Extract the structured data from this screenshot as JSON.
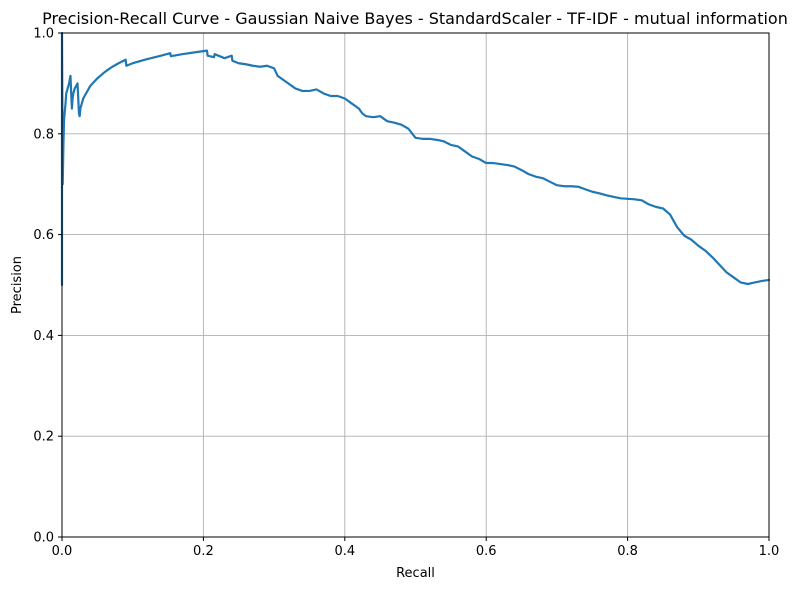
{
  "chart_data": {
    "type": "line",
    "title": "Precision-Recall Curve - Gaussian Naive Bayes - StandardScaler - TF-IDF - mutual information",
    "xlabel": "Recall",
    "ylabel": "Precision",
    "xlim": [
      0.0,
      1.0
    ],
    "ylim": [
      0.0,
      1.0
    ],
    "x_ticks": [
      "0.0",
      "0.2",
      "0.4",
      "0.6",
      "0.8",
      "1.0"
    ],
    "y_ticks": [
      "0.0",
      "0.2",
      "0.4",
      "0.6",
      "0.8",
      "1.0"
    ],
    "grid": true,
    "line_color": "#1f77b4",
    "grid_color": "#b0b0b0",
    "series": [
      {
        "x": [
          0.0,
          0.0,
          0.001,
          0.002,
          0.003,
          0.005,
          0.006,
          0.008,
          0.01,
          0.012,
          0.013,
          0.014,
          0.015,
          0.016,
          0.018,
          0.02,
          0.022,
          0.024,
          0.025,
          0.026,
          0.03,
          0.04,
          0.05,
          0.06,
          0.07,
          0.08,
          0.09,
          0.091,
          0.1,
          0.12,
          0.14,
          0.153,
          0.154,
          0.17,
          0.19,
          0.205,
          0.206,
          0.215,
          0.216,
          0.23,
          0.24,
          0.241,
          0.25,
          0.26,
          0.27,
          0.28,
          0.29,
          0.3,
          0.305,
          0.31,
          0.32,
          0.33,
          0.34,
          0.35,
          0.36,
          0.37,
          0.38,
          0.39,
          0.4,
          0.41,
          0.42,
          0.425,
          0.43,
          0.44,
          0.45,
          0.46,
          0.47,
          0.48,
          0.49,
          0.5,
          0.51,
          0.52,
          0.53,
          0.54,
          0.55,
          0.56,
          0.57,
          0.58,
          0.59,
          0.6,
          0.61,
          0.62,
          0.63,
          0.64,
          0.65,
          0.66,
          0.67,
          0.68,
          0.69,
          0.7,
          0.71,
          0.72,
          0.73,
          0.74,
          0.75,
          0.76,
          0.77,
          0.78,
          0.79,
          0.8,
          0.81,
          0.82,
          0.83,
          0.84,
          0.85,
          0.86,
          0.87,
          0.88,
          0.89,
          0.9,
          0.91,
          0.92,
          0.93,
          0.94,
          0.95,
          0.96,
          0.97,
          0.98,
          0.99,
          1.0
        ],
        "y": [
          0.5,
          1.0,
          0.7,
          0.78,
          0.83,
          0.86,
          0.88,
          0.89,
          0.9,
          0.915,
          0.88,
          0.85,
          0.87,
          0.88,
          0.89,
          0.895,
          0.9,
          0.84,
          0.835,
          0.85,
          0.87,
          0.895,
          0.91,
          0.922,
          0.932,
          0.94,
          0.947,
          0.935,
          0.94,
          0.948,
          0.955,
          0.96,
          0.954,
          0.958,
          0.962,
          0.965,
          0.955,
          0.952,
          0.958,
          0.95,
          0.955,
          0.945,
          0.94,
          0.938,
          0.935,
          0.933,
          0.935,
          0.93,
          0.915,
          0.91,
          0.9,
          0.89,
          0.885,
          0.885,
          0.888,
          0.88,
          0.875,
          0.875,
          0.87,
          0.86,
          0.85,
          0.84,
          0.835,
          0.833,
          0.835,
          0.825,
          0.822,
          0.818,
          0.81,
          0.792,
          0.79,
          0.79,
          0.788,
          0.785,
          0.778,
          0.775,
          0.765,
          0.755,
          0.75,
          0.742,
          0.742,
          0.74,
          0.738,
          0.735,
          0.728,
          0.72,
          0.715,
          0.712,
          0.705,
          0.698,
          0.696,
          0.696,
          0.695,
          0.69,
          0.685,
          0.682,
          0.678,
          0.675,
          0.672,
          0.671,
          0.67,
          0.668,
          0.66,
          0.655,
          0.652,
          0.64,
          0.615,
          0.598,
          0.59,
          0.578,
          0.568,
          0.555,
          0.54,
          0.525,
          0.515,
          0.505,
          0.502,
          0.505,
          0.508,
          0.51
        ]
      }
    ]
  }
}
